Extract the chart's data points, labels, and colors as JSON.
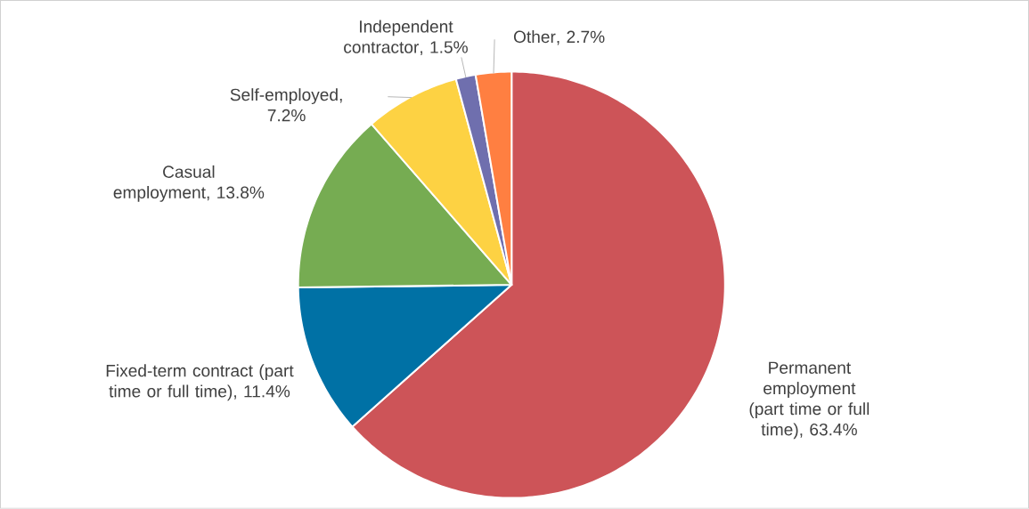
{
  "chart_data": {
    "type": "pie",
    "categories": [
      "Permanent employment (part time or full time)",
      "Fixed-term contract (part time or full time)",
      "Casual employment",
      "Self-employed",
      "Independent contractor",
      "Other"
    ],
    "values": [
      63.4,
      11.4,
      13.8,
      7.2,
      1.5,
      2.7
    ],
    "value_labels": [
      ", 63.4%",
      ", 11.4%",
      ", 13.8%",
      ", 7.2%",
      ", 1.5%",
      ", 2.7%"
    ],
    "colors": [
      "#cd5458",
      "#0071a5",
      "#76ac52",
      "#fdd243",
      "#6f6fae",
      "#ff7f41"
    ]
  }
}
